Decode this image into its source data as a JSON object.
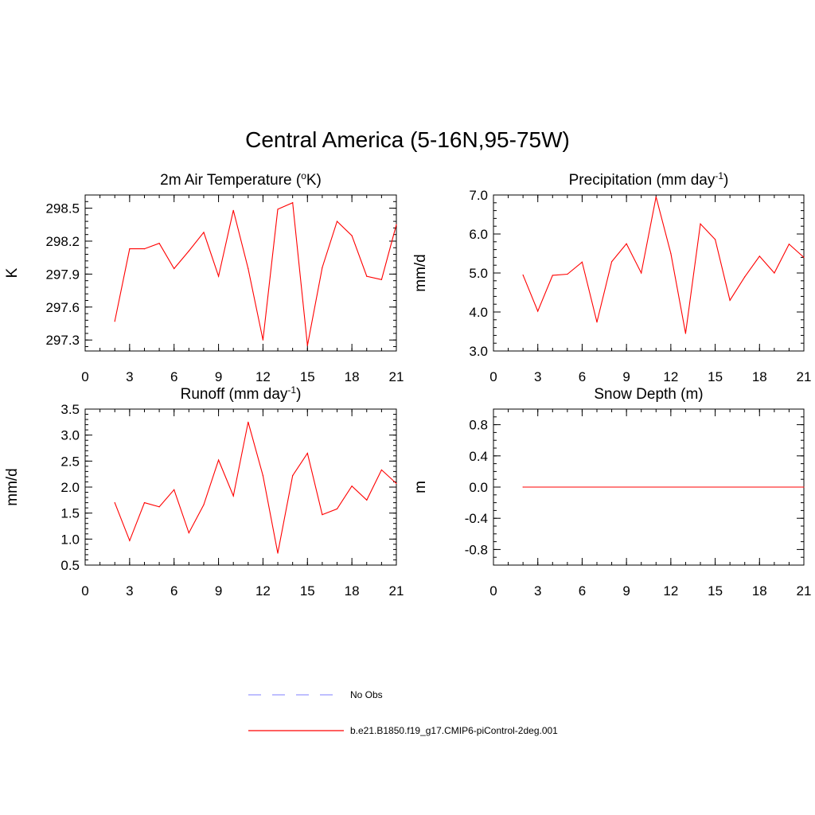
{
  "title": "Central America (5-16N,95-75W)",
  "chart_data": [
    {
      "type": "line",
      "title_main": "2m Air Temperature (",
      "title_sup": "o",
      "title_tail": "K)",
      "ylabel": "K",
      "xlim": [
        0,
        21
      ],
      "ylim": [
        297.2,
        298.62
      ],
      "xticks": [
        0,
        3,
        6,
        9,
        12,
        15,
        18,
        21
      ],
      "yticks": [
        297.3,
        297.6,
        297.9,
        298.2,
        298.5
      ],
      "ytick_labels": [
        "297.3",
        "297.6",
        "297.9",
        "298.2",
        "298.5"
      ],
      "yminor_step": 0.06,
      "x": [
        2,
        3,
        4,
        5,
        6,
        7,
        8,
        9,
        10,
        11,
        12,
        13,
        14,
        15,
        16,
        17,
        18,
        19,
        20,
        21
      ],
      "y": [
        297.47,
        298.13,
        298.13,
        298.18,
        297.95,
        298.11,
        298.28,
        297.88,
        298.48,
        297.95,
        297.3,
        298.49,
        298.55,
        297.25,
        297.96,
        298.38,
        298.25,
        297.88,
        297.85,
        298.35
      ]
    },
    {
      "type": "line",
      "title_main": "Precipitation (mm day",
      "title_sup": "-1",
      "title_tail": ")",
      "ylabel": "mm/d",
      "xlim": [
        0,
        21
      ],
      "ylim": [
        3.0,
        7.0
      ],
      "xticks": [
        0,
        3,
        6,
        9,
        12,
        15,
        18,
        21
      ],
      "yticks": [
        3.0,
        4.0,
        5.0,
        6.0,
        7.0
      ],
      "ytick_labels": [
        "3.0",
        "4.0",
        "5.0",
        "6.0",
        "7.0"
      ],
      "yminor_step": 0.2,
      "x": [
        2,
        3,
        4,
        5,
        6,
        7,
        8,
        9,
        10,
        11,
        12,
        13,
        14,
        15,
        16,
        17,
        18,
        19,
        20,
        21
      ],
      "y": [
        4.95,
        4.02,
        4.94,
        4.97,
        5.28,
        3.74,
        5.29,
        5.75,
        5.0,
        6.95,
        5.5,
        3.45,
        6.26,
        5.86,
        4.3,
        4.9,
        5.43,
        5.0,
        5.74,
        5.4
      ]
    },
    {
      "type": "line",
      "title_main": "Runoff (mm day",
      "title_sup": "-1",
      "title_tail": ")",
      "ylabel": "mm/d",
      "xlim": [
        0,
        21
      ],
      "ylim": [
        0.5,
        3.5
      ],
      "xticks": [
        0,
        3,
        6,
        9,
        12,
        15,
        18,
        21
      ],
      "yticks": [
        0.5,
        1.0,
        1.5,
        2.0,
        2.5,
        3.0,
        3.5
      ],
      "ytick_labels": [
        "0.5",
        "1.0",
        "1.5",
        "2.0",
        "2.5",
        "3.0",
        "3.5"
      ],
      "yminor_step": 0.1,
      "x": [
        2,
        3,
        4,
        5,
        6,
        7,
        8,
        9,
        10,
        11,
        12,
        13,
        14,
        15,
        16,
        17,
        18,
        19,
        20,
        21
      ],
      "y": [
        1.7,
        0.97,
        1.7,
        1.62,
        1.95,
        1.12,
        1.66,
        2.52,
        1.83,
        3.25,
        2.22,
        0.73,
        2.22,
        2.65,
        1.47,
        1.58,
        2.02,
        1.75,
        2.33,
        2.07
      ]
    },
    {
      "type": "line",
      "title_main": "Snow Depth (m)",
      "title_sup": "",
      "title_tail": "",
      "ylabel": "m",
      "xlim": [
        0,
        21
      ],
      "ylim": [
        -1.0,
        1.0
      ],
      "xticks": [
        0,
        3,
        6,
        9,
        12,
        15,
        18,
        21
      ],
      "yticks": [
        -0.8,
        -0.4,
        0.0,
        0.4,
        0.8
      ],
      "ytick_labels": [
        "-0.8",
        "-0.4",
        "0.0",
        "0.4",
        "0.8"
      ],
      "yminor_step": 0.1,
      "x": [
        2,
        21
      ],
      "y": [
        0.0,
        0.0
      ]
    }
  ],
  "legend": [
    {
      "label": "No Obs",
      "color": "#9999ff",
      "dashed": true
    },
    {
      "label": "b.e21.B1850.f19_g17.CMIP6-piControl-2deg.001",
      "color": "#ff0000",
      "dashed": false
    }
  ],
  "colors": {
    "series": "#ff0000",
    "axis": "#000000"
  }
}
